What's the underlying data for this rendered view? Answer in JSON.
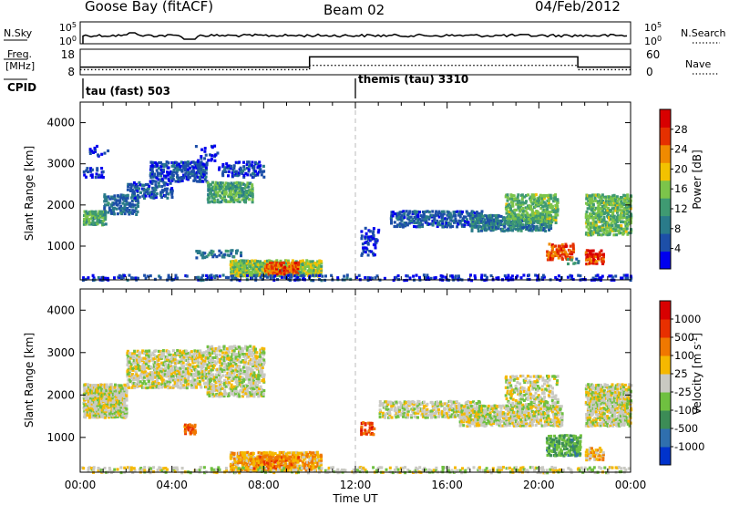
{
  "header": {
    "station": "Goose Bay (fitACF)",
    "beam": "Beam 02",
    "date": "04/Feb/2012"
  },
  "strip_labels": {
    "nsky": "N.Sky",
    "freq_line1": "Freq.",
    "freq_line2": "[MHz]",
    "cpid": "CPID",
    "nsearch": "N.Search",
    "nave": "Nave",
    "nsky_ticks": [
      "10^5",
      "10^0"
    ],
    "nsearch_ticks": [
      "10^5",
      "10^0"
    ],
    "freq_ticks": [
      "18",
      "8"
    ],
    "nave_ticks": [
      "60",
      "0"
    ]
  },
  "cpid_segments": [
    {
      "label": "tau (fast) 503",
      "start_hour": 0
    },
    {
      "label": "themis (tau) 3310",
      "start_hour": 12
    }
  ],
  "chart_data": [
    {
      "type": "heatmap",
      "quantity": "Power",
      "xlabel": "",
      "ylabel": "Slant Range [km]",
      "xlim": [
        "00:00",
        "24:00"
      ],
      "ylim": [
        180,
        4500
      ],
      "yticks": [
        "4000",
        "3000",
        "2000",
        "1000"
      ],
      "colorbar_label": "Power [dB]",
      "colorbar_ticks": [
        "28",
        "24",
        "20",
        "16",
        "12",
        "8",
        "4"
      ],
      "colorbar_colors": [
        "#0000ee",
        "#1d4fa8",
        "#2a7b8a",
        "#3f9a72",
        "#7cc44a",
        "#f2c200",
        "#f08a00",
        "#e53000",
        "#d80000"
      ],
      "colorbar_range": [
        0,
        30
      ],
      "regions": [
        {
          "t0": 0.1,
          "t1": 1.1,
          "r0": 1550,
          "r1": 1900,
          "level": 0.4,
          "density": 0.8
        },
        {
          "t0": 0.1,
          "t1": 1.0,
          "r0": 2700,
          "r1": 2950,
          "level": 0.05,
          "density": 0.3
        },
        {
          "t0": 0.3,
          "t1": 1.2,
          "r0": 3200,
          "r1": 3500,
          "level": 0.05,
          "density": 0.12
        },
        {
          "t0": 1.0,
          "t1": 2.5,
          "r0": 1800,
          "r1": 2300,
          "level": 0.2,
          "density": 0.5
        },
        {
          "t0": 2.0,
          "t1": 4.0,
          "r0": 2200,
          "r1": 2600,
          "level": 0.15,
          "density": 0.4
        },
        {
          "t0": 3.0,
          "t1": 5.5,
          "r0": 2600,
          "r1": 3100,
          "level": 0.1,
          "density": 0.6
        },
        {
          "t0": 5.5,
          "t1": 7.5,
          "r0": 2100,
          "r1": 2600,
          "level": 0.4,
          "density": 0.7
        },
        {
          "t0": 6.0,
          "t1": 8.0,
          "r0": 2700,
          "r1": 3100,
          "level": 0.1,
          "density": 0.3
        },
        {
          "t0": 5.0,
          "t1": 6.0,
          "r0": 3100,
          "r1": 3500,
          "level": 0.05,
          "density": 0.15
        },
        {
          "t0": 6.5,
          "t1": 10.5,
          "r0": 300,
          "r1": 700,
          "level": 0.5,
          "density": 0.8
        },
        {
          "t0": 8.0,
          "t1": 9.5,
          "r0": 350,
          "r1": 650,
          "level": 0.85,
          "density": 0.6
        },
        {
          "t0": 5.0,
          "t1": 7.0,
          "r0": 750,
          "r1": 950,
          "level": 0.25,
          "density": 0.4
        },
        {
          "t0": 0.0,
          "t1": 12.0,
          "r0": 200,
          "r1": 350,
          "level": 0.1,
          "density": 0.3
        },
        {
          "t0": 12.2,
          "t1": 13.0,
          "r0": 800,
          "r1": 1500,
          "level": 0.05,
          "density": 0.3
        },
        {
          "t0": 13.5,
          "t1": 17.5,
          "r0": 1500,
          "r1": 1900,
          "level": 0.15,
          "density": 0.5
        },
        {
          "t0": 17.0,
          "t1": 20.5,
          "r0": 1400,
          "r1": 1800,
          "level": 0.25,
          "density": 0.6
        },
        {
          "t0": 18.5,
          "t1": 20.8,
          "r0": 1600,
          "r1": 2300,
          "level": 0.45,
          "density": 0.55
        },
        {
          "t0": 20.3,
          "t1": 21.5,
          "r0": 700,
          "r1": 1100,
          "level": 0.85,
          "density": 0.5
        },
        {
          "t0": 21.2,
          "t1": 21.8,
          "r0": 600,
          "r1": 800,
          "level": 0.3,
          "density": 0.4
        },
        {
          "t0": 22.0,
          "t1": 22.8,
          "r0": 600,
          "r1": 950,
          "level": 0.9,
          "density": 0.65
        },
        {
          "t0": 22.0,
          "t1": 24.0,
          "r0": 1300,
          "r1": 2300,
          "level": 0.45,
          "density": 0.6
        },
        {
          "t0": 12.0,
          "t1": 24.0,
          "r0": 200,
          "r1": 350,
          "level": 0.05,
          "density": 0.3
        }
      ]
    },
    {
      "type": "heatmap",
      "quantity": "Velocity",
      "xlabel": "Time UT",
      "ylabel": "Slant Range [km]",
      "xlim": [
        "00:00",
        "24:00"
      ],
      "xticks": [
        "00:00",
        "04:00",
        "08:00",
        "12:00",
        "16:00",
        "20:00",
        "00:00"
      ],
      "ylim": [
        180,
        4500
      ],
      "yticks": [
        "4000",
        "3000",
        "2000",
        "1000"
      ],
      "colorbar_label": "Velocity [m s^-1]",
      "colorbar_ticks": [
        "1000",
        "500",
        "100",
        "25",
        "-25",
        "-100",
        "-500",
        "-1000"
      ],
      "colorbar_colors": [
        "#0033cc",
        "#2f6fae",
        "#3c8c56",
        "#6fc040",
        "#c9c9c2",
        "#f5b800",
        "#f07800",
        "#e83000",
        "#d80000"
      ],
      "colorbar_range": [
        -1000,
        1000
      ],
      "regions": [
        {
          "t0": 0.1,
          "t1": 2.0,
          "r0": 1500,
          "r1": 2300,
          "level": 0.5,
          "density": 0.85
        },
        {
          "t0": 2.0,
          "t1": 5.5,
          "r0": 2200,
          "r1": 3100,
          "level": 0.5,
          "density": 0.6
        },
        {
          "t0": 5.5,
          "t1": 8.0,
          "r0": 2000,
          "r1": 3200,
          "level": 0.5,
          "density": 0.55
        },
        {
          "t0": 6.5,
          "t1": 10.5,
          "r0": 250,
          "r1": 700,
          "level": 0.65,
          "density": 0.75
        },
        {
          "t0": 7.5,
          "t1": 9.5,
          "r0": 300,
          "r1": 600,
          "level": 0.75,
          "density": 0.5
        },
        {
          "t0": 4.5,
          "t1": 5.0,
          "r0": 1100,
          "r1": 1350,
          "level": 0.8,
          "density": 0.6
        },
        {
          "t0": 12.2,
          "t1": 12.8,
          "r0": 1100,
          "r1": 1400,
          "level": 0.85,
          "density": 0.5
        },
        {
          "t0": 13.0,
          "t1": 17.5,
          "r0": 1500,
          "r1": 1900,
          "level": 0.5,
          "density": 0.5
        },
        {
          "t0": 16.5,
          "t1": 21.0,
          "r0": 1300,
          "r1": 1800,
          "level": 0.5,
          "density": 0.7
        },
        {
          "t0": 18.5,
          "t1": 20.8,
          "r0": 1700,
          "r1": 2500,
          "level": 0.5,
          "density": 0.4
        },
        {
          "t0": 20.3,
          "t1": 21.8,
          "r0": 600,
          "r1": 1100,
          "level": 0.3,
          "density": 0.6
        },
        {
          "t0": 22.0,
          "t1": 22.8,
          "r0": 500,
          "r1": 800,
          "level": 0.62,
          "density": 0.6
        },
        {
          "t0": 22.0,
          "t1": 24.0,
          "r0": 1300,
          "r1": 2300,
          "level": 0.5,
          "density": 0.75
        },
        {
          "t0": 0.0,
          "t1": 24.0,
          "r0": 200,
          "r1": 350,
          "level": 0.5,
          "density": 0.35
        }
      ]
    },
    {
      "type": "line",
      "quantity": "Freq. [MHz]",
      "x": [
        0,
        10.0,
        10.0,
        21.7,
        21.7,
        24
      ],
      "y": [
        11,
        11,
        15,
        15,
        11,
        11
      ]
    },
    {
      "type": "line",
      "quantity": "Nave",
      "x": [
        0,
        10.0,
        10.0,
        21.7,
        21.7,
        24
      ],
      "y": [
        12,
        12,
        22,
        22,
        12,
        12
      ]
    }
  ]
}
